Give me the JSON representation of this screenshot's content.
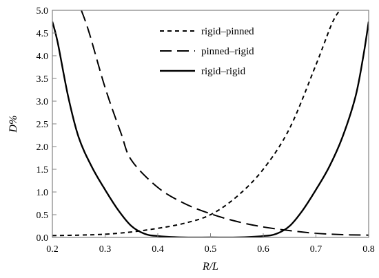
{
  "chart_data": {
    "type": "line",
    "title": "",
    "xlabel": "R/L",
    "ylabel": "D%",
    "xlim": [
      0.2,
      0.8
    ],
    "ylim": [
      0,
      5.0
    ],
    "xticks": [
      0.2,
      0.3,
      0.4,
      0.5,
      0.6,
      0.7,
      0.8
    ],
    "xtick_labels": [
      "0.2",
      "0.3",
      "0.4",
      "0.5",
      "0.6",
      "0.7",
      "0.8"
    ],
    "yticks": [
      0,
      0.5,
      1.0,
      1.5,
      2.0,
      2.5,
      3.0,
      3.5,
      4.0,
      4.5,
      5.0
    ],
    "ytick_labels": [
      "0.0",
      "0.5",
      "1.0",
      "1.5",
      "2.0",
      "2.5",
      "3.0",
      "3.5",
      "4.0",
      "4.5",
      "5.0"
    ],
    "grid": false,
    "legend_position": "top-center",
    "series": [
      {
        "name": "rigid–pinned",
        "style": "dotted",
        "x": [
          0.2,
          0.25,
          0.3,
          0.35,
          0.4,
          0.45,
          0.5,
          0.55,
          0.6,
          0.65,
          0.7,
          0.73,
          0.745
        ],
        "y": [
          0.04,
          0.05,
          0.07,
          0.12,
          0.2,
          0.31,
          0.5,
          0.9,
          1.5,
          2.4,
          3.8,
          4.7,
          5.0
        ]
      },
      {
        "name": "pinned–rigid",
        "style": "dashed",
        "x": [
          0.255,
          0.27,
          0.3,
          0.33,
          0.35,
          0.4,
          0.45,
          0.5,
          0.55,
          0.6,
          0.65,
          0.7,
          0.75,
          0.8
        ],
        "y": [
          5.0,
          4.5,
          3.3,
          2.3,
          1.7,
          1.1,
          0.75,
          0.52,
          0.35,
          0.23,
          0.15,
          0.09,
          0.06,
          0.05
        ]
      },
      {
        "name": "rigid–rigid",
        "style": "solid",
        "x": [
          0.2,
          0.21,
          0.23,
          0.25,
          0.275,
          0.3,
          0.325,
          0.35,
          0.375,
          0.4,
          0.45,
          0.5,
          0.55,
          0.6,
          0.625,
          0.65,
          0.675,
          0.7,
          0.725,
          0.75,
          0.775,
          0.79,
          0.8
        ],
        "y": [
          4.75,
          4.3,
          3.1,
          2.2,
          1.55,
          1.05,
          0.6,
          0.25,
          0.08,
          0.03,
          0.0,
          0.0,
          0.0,
          0.03,
          0.08,
          0.25,
          0.6,
          1.05,
          1.55,
          2.2,
          3.1,
          4.0,
          4.75
        ]
      }
    ]
  }
}
